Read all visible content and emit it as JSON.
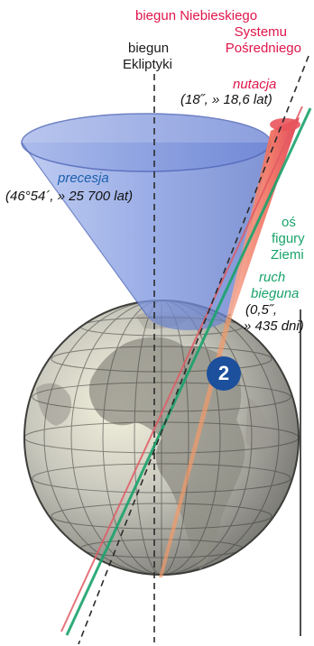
{
  "labels": {
    "pole_cip_line1": "biegun Niebieskiego",
    "pole_cip_line2": "Systemu",
    "pole_cip_line3": "Pośredniego",
    "pole_ecliptic_line1": "biegun",
    "pole_ecliptic_line2": "Ekliptyki",
    "nutation_title": "nutacja",
    "nutation_value": "(18˝, » 18,6 lat)",
    "precession_title": "precesja",
    "precession_value": "(46°54´, » 25 700 lat)",
    "figure_axis_line1": "oś",
    "figure_axis_line2": "figury",
    "figure_axis_line3": "Ziemi",
    "polar_motion_line1": "ruch",
    "polar_motion_line2": "bieguna",
    "polar_motion_value1": "(0,5˝,",
    "polar_motion_value2": "» 435 dni)"
  },
  "badge": {
    "number": "2"
  },
  "colors": {
    "cip_red": "#e0154a",
    "precession_blue": "#1b5fb0",
    "figure_green": "#1aa36c",
    "badge_blue": "#1c4f9c",
    "cone_blue": "#8fa6e6",
    "nutation_cone": "#f08a7a"
  },
  "icons": {
    "globe": "earth-globe-icon"
  }
}
